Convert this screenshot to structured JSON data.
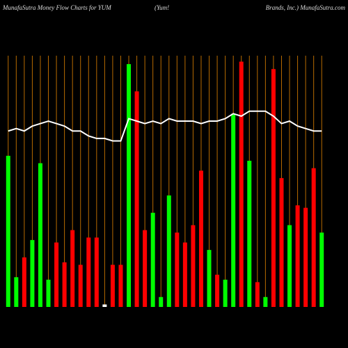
{
  "chart_data": {
    "type": "bar",
    "title": "MunafaSutra  Money Flow  Charts for YUM",
    "subtitle": "(Yum!",
    "source": "Brands, Inc.) MunafaSutra.com",
    "categories": [
      null,
      null,
      null,
      null,
      null,
      null,
      null,
      null,
      null,
      null,
      null,
      null,
      null,
      null,
      null,
      null,
      null,
      null,
      null,
      null,
      null,
      null,
      null,
      null,
      null,
      null,
      null,
      null,
      null,
      null,
      null,
      null,
      null,
      null,
      null,
      null,
      null,
      null,
      null,
      null
    ],
    "values": [
      61,
      12,
      20,
      27,
      58,
      11,
      26,
      18,
      31,
      17,
      28,
      28,
      1,
      17,
      17,
      98,
      87,
      31,
      38,
      4,
      45,
      30,
      26,
      33,
      55,
      23,
      13,
      11,
      78,
      99,
      59,
      10,
      4,
      96,
      52,
      33,
      41,
      40,
      56,
      30
    ],
    "colors": [
      "#00ff00",
      "#00ff00",
      "#ff0000",
      "#00ff00",
      "#00ff00",
      "#00ff00",
      "#ff0000",
      "#ff0000",
      "#ff0000",
      "#ff0000",
      "#ff0000",
      "#ff0000",
      "#ffffff",
      "#ff0000",
      "#ff0000",
      "#00ff00",
      "#ff0000",
      "#ff0000",
      "#00ff00",
      "#00ff00",
      "#00ff00",
      "#ff0000",
      "#ff0000",
      "#ff0000",
      "#ff0000",
      "#00ff00",
      "#ff0000",
      "#00ff00",
      "#00ff00",
      "#ff0000",
      "#00ff00",
      "#ff0000",
      "#00ff00",
      "#ff0000",
      "#ff0000",
      "#00ff00",
      "#ff0000",
      "#ff0000",
      "#ff0000",
      "#00ff00"
    ],
    "line": {
      "color": "#ffffff",
      "values": [
        71,
        72,
        71,
        73,
        74,
        75,
        74,
        73,
        71,
        71,
        69,
        68,
        68,
        67,
        67,
        76,
        75,
        74,
        75,
        74,
        76,
        75,
        75,
        75,
        74,
        75,
        75,
        76,
        78,
        77,
        79,
        79,
        79,
        77,
        74,
        75,
        73,
        72,
        71,
        71
      ]
    },
    "grid_color": "#b86b00",
    "ylim": [
      0,
      100
    ]
  }
}
